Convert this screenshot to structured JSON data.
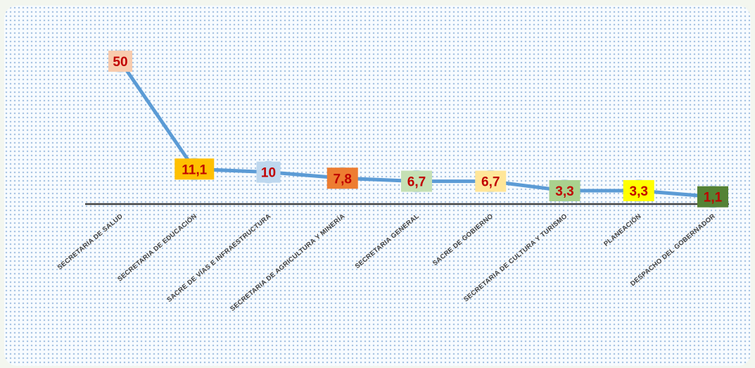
{
  "chart_data": {
    "type": "line",
    "title": "",
    "xlabel": "",
    "ylabel": "",
    "categories": [
      "SECRETARIA DE SALUD",
      "SECRETARIA DE EDUCACIÓN",
      "SACRE DE VÍAS E INFRAESTRUCTURA",
      "SECRETARIA DE AGRICULTURA Y MINERÍA",
      "SECRETARIA GENERAL",
      "SACRE DE GOBIERNO",
      "SECRETARIA DE CULTURA Y TURISMO",
      "PLANEACIÓN",
      "DESPACHO DEL GOBERNADOR"
    ],
    "series": [
      {
        "values": [
          50,
          11.1,
          10,
          7.8,
          6.7,
          6.7,
          3.3,
          3.3,
          1.1
        ],
        "data_labels": [
          "50",
          "11,1",
          "10",
          "7,8",
          "6,7",
          "6,7",
          "3,3",
          "3,3",
          "1,1"
        ]
      }
    ],
    "ylim": [
      0,
      50
    ],
    "grid": false,
    "legend": "none",
    "line_color": "#5b9bd5",
    "label_box_colors": [
      "#f8cbad",
      "#ffc000",
      "#bdd7ee",
      "#ed7d31",
      "#c5e0b4",
      "#ffe699",
      "#a9d18e",
      "#ffff00",
      "#548235"
    ],
    "label_text_color": "#c00000",
    "axis_color": "#404040"
  }
}
